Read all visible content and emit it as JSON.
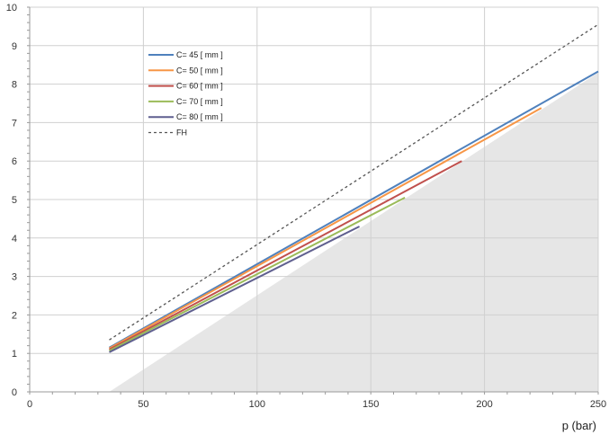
{
  "chart_data": {
    "type": "line",
    "title": "",
    "xlabel": "p (bar)",
    "ylabel": "",
    "xlim": [
      0,
      250
    ],
    "ylim": [
      0,
      10
    ],
    "x_ticks": [
      "0",
      "50",
      "100",
      "150",
      "200",
      "250"
    ],
    "y_ticks": [
      "0",
      "1",
      "2",
      "3",
      "4",
      "5",
      "6",
      "7",
      "8",
      "9",
      "10"
    ],
    "grid": true,
    "legend_position": "top-left",
    "shaded_region": {
      "color": "#e6e6e6",
      "x": [
        35,
        250
      ],
      "y": [
        0,
        8.3
      ]
    },
    "series": [
      {
        "name": "C= 45 [ mm ]",
        "color": "#4f81bd",
        "dash": "solid",
        "x": [
          35,
          250
        ],
        "y": [
          1.15,
          8.33
        ]
      },
      {
        "name": "C= 50 [ mm ]",
        "color": "#f79646",
        "dash": "solid",
        "x": [
          35,
          225
        ],
        "y": [
          1.13,
          7.38
        ]
      },
      {
        "name": "C= 60 [ mm ]",
        "color": "#c0504d",
        "dash": "solid",
        "x": [
          35,
          190
        ],
        "y": [
          1.1,
          6.0
        ]
      },
      {
        "name": "C= 70 [ mm ]",
        "color": "#9bbb59",
        "dash": "solid",
        "x": [
          35,
          165
        ],
        "y": [
          1.07,
          5.05
        ]
      },
      {
        "name": "C= 80 [ mm ]",
        "color": "#5f5f8f",
        "dash": "solid",
        "x": [
          35,
          145
        ],
        "y": [
          1.03,
          4.3
        ]
      },
      {
        "name": "FH",
        "color": "#555555",
        "dash": "dotted",
        "x": [
          35,
          250
        ],
        "y": [
          1.35,
          9.55
        ]
      }
    ]
  }
}
